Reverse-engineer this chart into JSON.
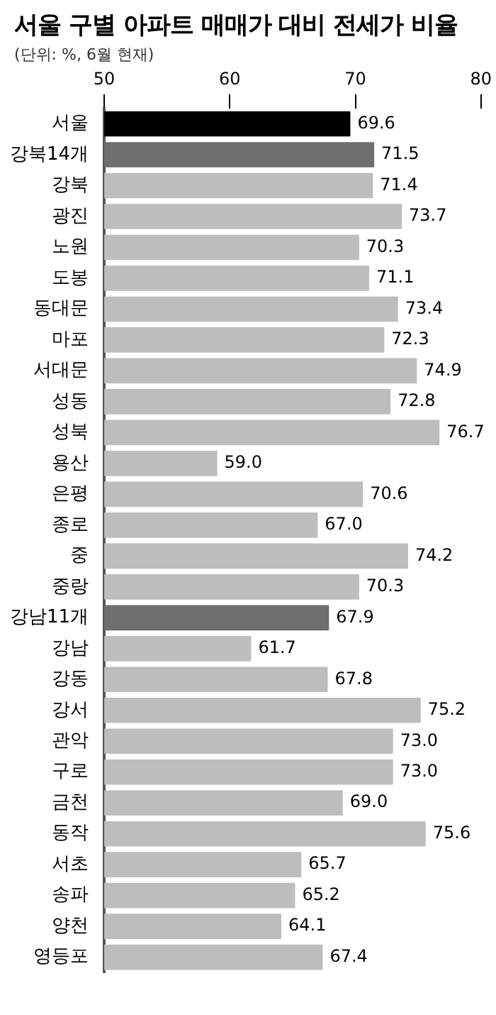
{
  "chart_data": {
    "type": "bar",
    "orientation": "horizontal",
    "title": "서울 구별 아파트 매매가 대비 전세가 비율",
    "subtitle": "(단위: %, 6월 현재)",
    "categories": [
      "서울",
      "강북14개",
      "강북",
      "광진",
      "노원",
      "도봉",
      "동대문",
      "마포",
      "서대문",
      "성동",
      "성북",
      "용산",
      "은평",
      "종로",
      "중",
      "중랑",
      "강남11개",
      "강남",
      "강동",
      "강서",
      "관악",
      "구로",
      "금천",
      "동작",
      "서초",
      "송파",
      "양천",
      "영등포"
    ],
    "values": [
      69.6,
      71.5,
      71.4,
      73.7,
      70.3,
      71.1,
      73.4,
      72.3,
      74.9,
      72.8,
      76.7,
      59.0,
      70.6,
      67.0,
      74.2,
      70.3,
      67.9,
      61.7,
      67.8,
      75.2,
      73.0,
      73.0,
      69.0,
      75.6,
      65.7,
      65.2,
      64.1,
      67.4
    ],
    "colors": [
      "#000000",
      "#6e6e6e",
      "#bdbdbd",
      "#bdbdbd",
      "#bdbdbd",
      "#bdbdbd",
      "#bdbdbd",
      "#bdbdbd",
      "#bdbdbd",
      "#bdbdbd",
      "#bdbdbd",
      "#bdbdbd",
      "#bdbdbd",
      "#bdbdbd",
      "#bdbdbd",
      "#bdbdbd",
      "#6e6e6e",
      "#bdbdbd",
      "#bdbdbd",
      "#bdbdbd",
      "#bdbdbd",
      "#bdbdbd",
      "#bdbdbd",
      "#bdbdbd",
      "#bdbdbd",
      "#bdbdbd",
      "#bdbdbd",
      "#bdbdbd"
    ],
    "value_labels": [
      "69.6",
      "71.5",
      "71.4",
      "73.7",
      "70.3",
      "71.1",
      "73.4",
      "72.3",
      "74.9",
      "72.8",
      "76.7",
      "59.0",
      "70.6",
      "67.0",
      "74.2",
      "70.3",
      "67.9",
      "61.7",
      "67.8",
      "75.2",
      "73.0",
      "73.0",
      "69.0",
      "75.6",
      "65.7",
      "65.2",
      "64.1",
      "67.4"
    ],
    "xlim": [
      50,
      80
    ],
    "xticks": [
      50,
      60,
      70,
      80
    ],
    "grid": false,
    "legend": false
  }
}
